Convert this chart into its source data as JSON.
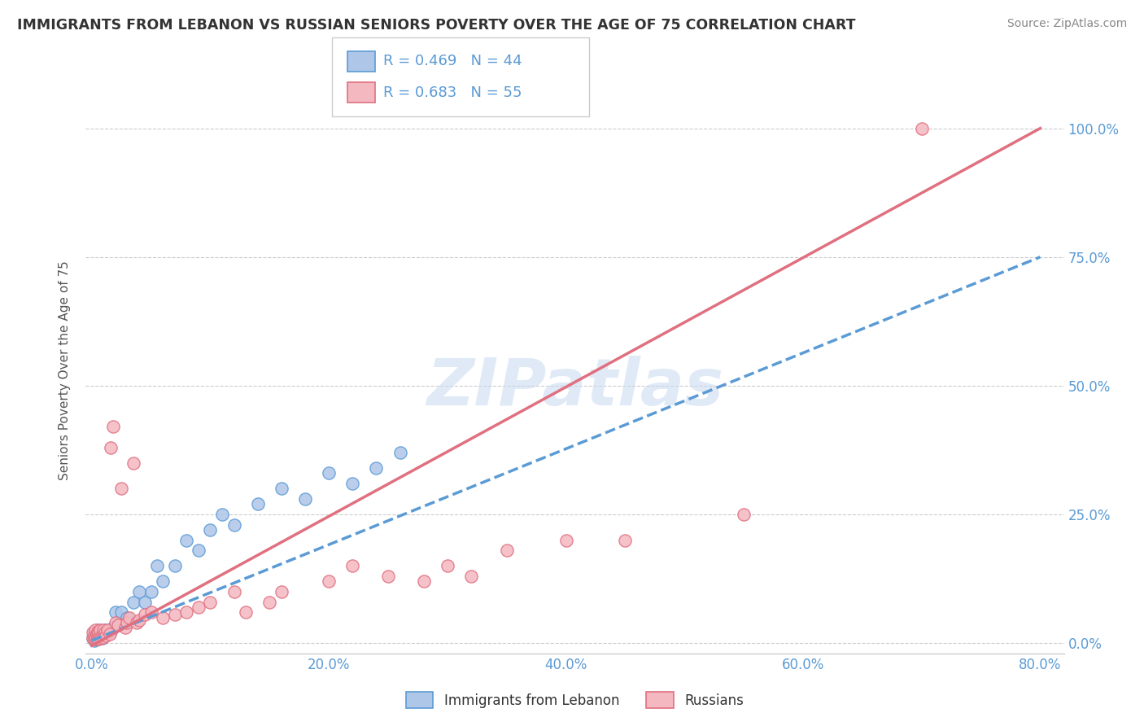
{
  "title": "IMMIGRANTS FROM LEBANON VS RUSSIAN SENIORS POVERTY OVER THE AGE OF 75 CORRELATION CHART",
  "source": "Source: ZipAtlas.com",
  "ylabel": "Seniors Poverty Over the Age of 75",
  "xlim": [
    -0.005,
    0.82
  ],
  "ylim": [
    -0.02,
    1.08
  ],
  "xticks": [
    0.0,
    0.2,
    0.4,
    0.6,
    0.8
  ],
  "xticklabels": [
    "0.0%",
    "20.0%",
    "40.0%",
    "60.0%",
    "80.0%"
  ],
  "yticks": [
    0.0,
    0.25,
    0.5,
    0.75,
    1.0
  ],
  "yticklabels": [
    "0.0%",
    "25.0%",
    "50.0%",
    "75.0%",
    "100.0%"
  ],
  "lebanon_color": "#aec6e8",
  "lebanon_edge": "#5b9bd5",
  "russian_color": "#f4b8c1",
  "russian_edge": "#e07080",
  "lebanon_R": 0.469,
  "lebanon_N": 44,
  "russian_R": 0.683,
  "russian_N": 55,
  "legend_label1": "Immigrants from Lebanon",
  "legend_label2": "Russians",
  "leb_line_x0": 0.0,
  "leb_line_y0": 0.005,
  "leb_line_x1": 0.8,
  "leb_line_y1": 0.75,
  "rus_line_x0": 0.0,
  "rus_line_y0": -0.005,
  "rus_line_x1": 0.8,
  "rus_line_y1": 1.0,
  "lebanon_x": [
    0.001,
    0.002,
    0.002,
    0.003,
    0.003,
    0.004,
    0.004,
    0.005,
    0.005,
    0.006,
    0.006,
    0.007,
    0.008,
    0.009,
    0.01,
    0.01,
    0.011,
    0.012,
    0.013,
    0.015,
    0.016,
    0.018,
    0.02,
    0.025,
    0.03,
    0.035,
    0.04,
    0.045,
    0.05,
    0.055,
    0.06,
    0.07,
    0.08,
    0.09,
    0.1,
    0.11,
    0.12,
    0.14,
    0.16,
    0.18,
    0.2,
    0.22,
    0.24,
    0.26
  ],
  "lebanon_y": [
    0.01,
    0.02,
    0.005,
    0.015,
    0.008,
    0.01,
    0.018,
    0.012,
    0.025,
    0.008,
    0.02,
    0.015,
    0.018,
    0.01,
    0.015,
    0.02,
    0.025,
    0.018,
    0.02,
    0.025,
    0.022,
    0.03,
    0.06,
    0.06,
    0.05,
    0.08,
    0.1,
    0.08,
    0.1,
    0.15,
    0.12,
    0.15,
    0.2,
    0.18,
    0.22,
    0.25,
    0.23,
    0.27,
    0.3,
    0.28,
    0.33,
    0.31,
    0.34,
    0.37
  ],
  "russian_x": [
    0.001,
    0.001,
    0.002,
    0.002,
    0.003,
    0.003,
    0.004,
    0.004,
    0.005,
    0.005,
    0.006,
    0.006,
    0.007,
    0.007,
    0.008,
    0.009,
    0.01,
    0.01,
    0.011,
    0.012,
    0.013,
    0.015,
    0.016,
    0.018,
    0.02,
    0.022,
    0.025,
    0.028,
    0.03,
    0.032,
    0.035,
    0.038,
    0.04,
    0.045,
    0.05,
    0.06,
    0.07,
    0.08,
    0.09,
    0.1,
    0.12,
    0.13,
    0.15,
    0.16,
    0.2,
    0.22,
    0.25,
    0.28,
    0.3,
    0.32,
    0.35,
    0.4,
    0.45,
    0.55,
    0.7
  ],
  "russian_y": [
    0.01,
    0.02,
    0.008,
    0.015,
    0.01,
    0.025,
    0.008,
    0.018,
    0.012,
    0.022,
    0.008,
    0.02,
    0.015,
    0.025,
    0.01,
    0.018,
    0.012,
    0.025,
    0.02,
    0.015,
    0.025,
    0.018,
    0.38,
    0.42,
    0.04,
    0.035,
    0.3,
    0.03,
    0.04,
    0.05,
    0.35,
    0.04,
    0.045,
    0.055,
    0.06,
    0.05,
    0.055,
    0.06,
    0.07,
    0.08,
    0.1,
    0.06,
    0.08,
    0.1,
    0.12,
    0.15,
    0.13,
    0.12,
    0.15,
    0.13,
    0.18,
    0.2,
    0.2,
    0.25,
    1.0
  ],
  "gridline_color": "#cccccc",
  "spine_color": "#cccccc",
  "title_color": "#333333",
  "axis_tick_color": "#5b9bd5",
  "source_color": "#888888",
  "watermark_text": "ZIPatlas",
  "watermark_color": "#c8daf0"
}
